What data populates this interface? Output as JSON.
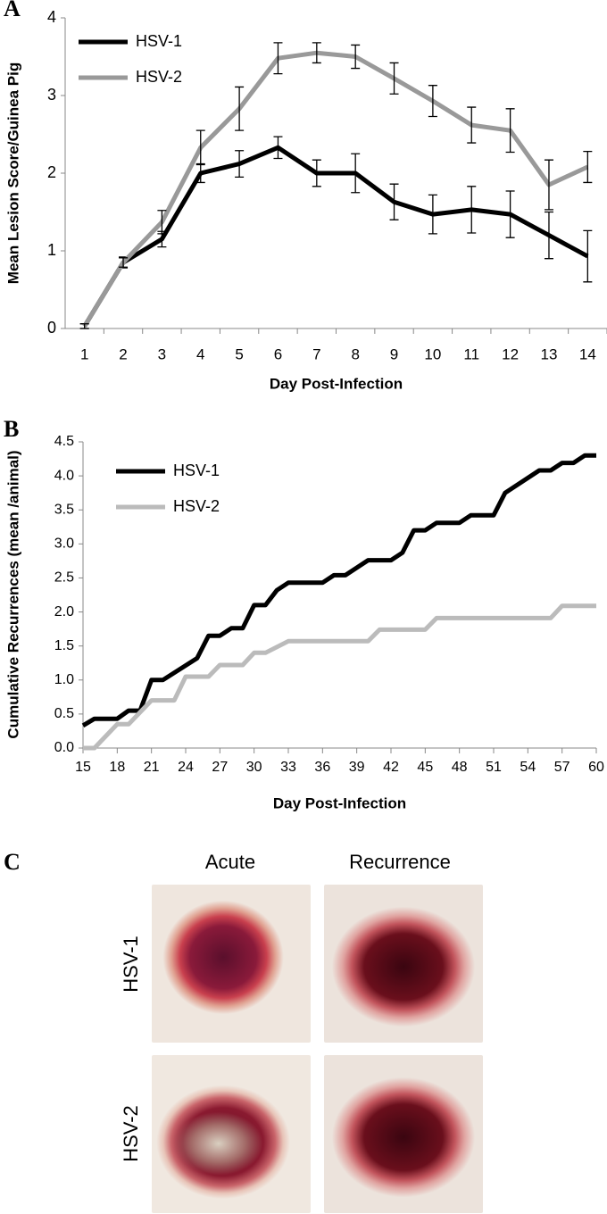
{
  "chart_data": [
    {
      "type": "line",
      "panel_label": "A",
      "x_label": "Day Post-Infection",
      "y_label": "Mean Lesion Score/Guinea Pig",
      "categories": [
        "1",
        "2",
        "3",
        "4",
        "5",
        "6",
        "7",
        "8",
        "9",
        "10",
        "11",
        "12",
        "13",
        "14"
      ],
      "ylim": [
        0,
        4
      ],
      "yticks": [
        0,
        1,
        2,
        3,
        4
      ],
      "legend": "upper-left",
      "series": [
        {
          "name": "HSV-1",
          "color": "#000000",
          "values": [
            0.03,
            0.85,
            1.15,
            2.0,
            2.12,
            2.33,
            2.0,
            2.0,
            1.63,
            1.47,
            1.53,
            1.47,
            1.2,
            0.93
          ],
          "errors": [
            0.03,
            0.07,
            0.1,
            0.12,
            0.17,
            0.14,
            0.17,
            0.25,
            0.23,
            0.25,
            0.3,
            0.3,
            0.3,
            0.33
          ]
        },
        {
          "name": "HSV-2",
          "color": "#999999",
          "values": [
            0.03,
            0.85,
            1.37,
            2.33,
            2.83,
            3.48,
            3.55,
            3.5,
            3.22,
            2.93,
            2.62,
            2.55,
            1.85,
            2.08
          ],
          "errors": [
            0.03,
            0.06,
            0.15,
            0.22,
            0.28,
            0.2,
            0.13,
            0.15,
            0.2,
            0.2,
            0.23,
            0.28,
            0.32,
            0.2
          ]
        }
      ]
    },
    {
      "type": "line",
      "panel_label": "B",
      "x_label": "Day Post-Infection",
      "y_label": "Cumulative Recurrences (mean /animal)",
      "xlim": [
        15,
        60
      ],
      "xticks": [
        15,
        18,
        21,
        24,
        27,
        30,
        33,
        36,
        39,
        42,
        45,
        48,
        51,
        54,
        57,
        60
      ],
      "ylim": [
        0,
        4.5
      ],
      "yticks": [
        {
          "value": 0,
          "label": "0.0"
        },
        {
          "value": 0.5,
          "label": "0.5"
        },
        {
          "value": 1,
          "label": "1.0"
        },
        {
          "value": 1.5,
          "label": "1.5"
        },
        {
          "value": 2,
          "label": "2.0"
        },
        {
          "value": 2.5,
          "label": "2.5"
        },
        {
          "value": 3,
          "label": "3.0"
        },
        {
          "value": 3.5,
          "label": "3.5"
        },
        {
          "value": 4,
          "label": "4.0"
        },
        {
          "value": 4.5,
          "label": "4.5"
        }
      ],
      "legend": "upper-left",
      "series": [
        {
          "name": "HSV-1",
          "color": "#000000",
          "x": [
            15,
            16,
            18,
            19,
            20,
            21,
            22,
            25,
            26,
            27,
            28,
            29,
            30,
            31,
            32,
            33,
            36,
            37,
            38,
            40,
            42,
            43,
            44,
            45,
            46,
            48,
            49,
            51,
            52,
            55,
            56,
            57,
            58,
            59,
            60
          ],
          "values": [
            0.33,
            0.43,
            0.43,
            0.55,
            0.55,
            1.0,
            1.0,
            1.32,
            1.65,
            1.65,
            1.76,
            1.76,
            2.1,
            2.1,
            2.32,
            2.43,
            2.43,
            2.54,
            2.54,
            2.76,
            2.76,
            2.87,
            3.2,
            3.2,
            3.31,
            3.31,
            3.42,
            3.42,
            3.75,
            4.08,
            4.08,
            4.19,
            4.19,
            4.3,
            4.3
          ]
        },
        {
          "name": "HSV-2",
          "color": "#bbbbbb",
          "x": [
            15,
            16,
            18,
            19,
            21,
            23,
            24,
            26,
            27,
            29,
            30,
            31,
            33,
            40,
            41,
            45,
            46,
            56,
            57,
            60
          ],
          "values": [
            0,
            0,
            0.35,
            0.35,
            0.7,
            0.7,
            1.05,
            1.05,
            1.22,
            1.22,
            1.4,
            1.4,
            1.57,
            1.57,
            1.74,
            1.74,
            1.91,
            1.91,
            2.09,
            2.09
          ]
        }
      ]
    }
  ],
  "panel_c": {
    "panel_label": "C",
    "columns": [
      "Acute",
      "Recurrence"
    ],
    "rows": [
      "HSV-1",
      "HSV-2"
    ]
  }
}
